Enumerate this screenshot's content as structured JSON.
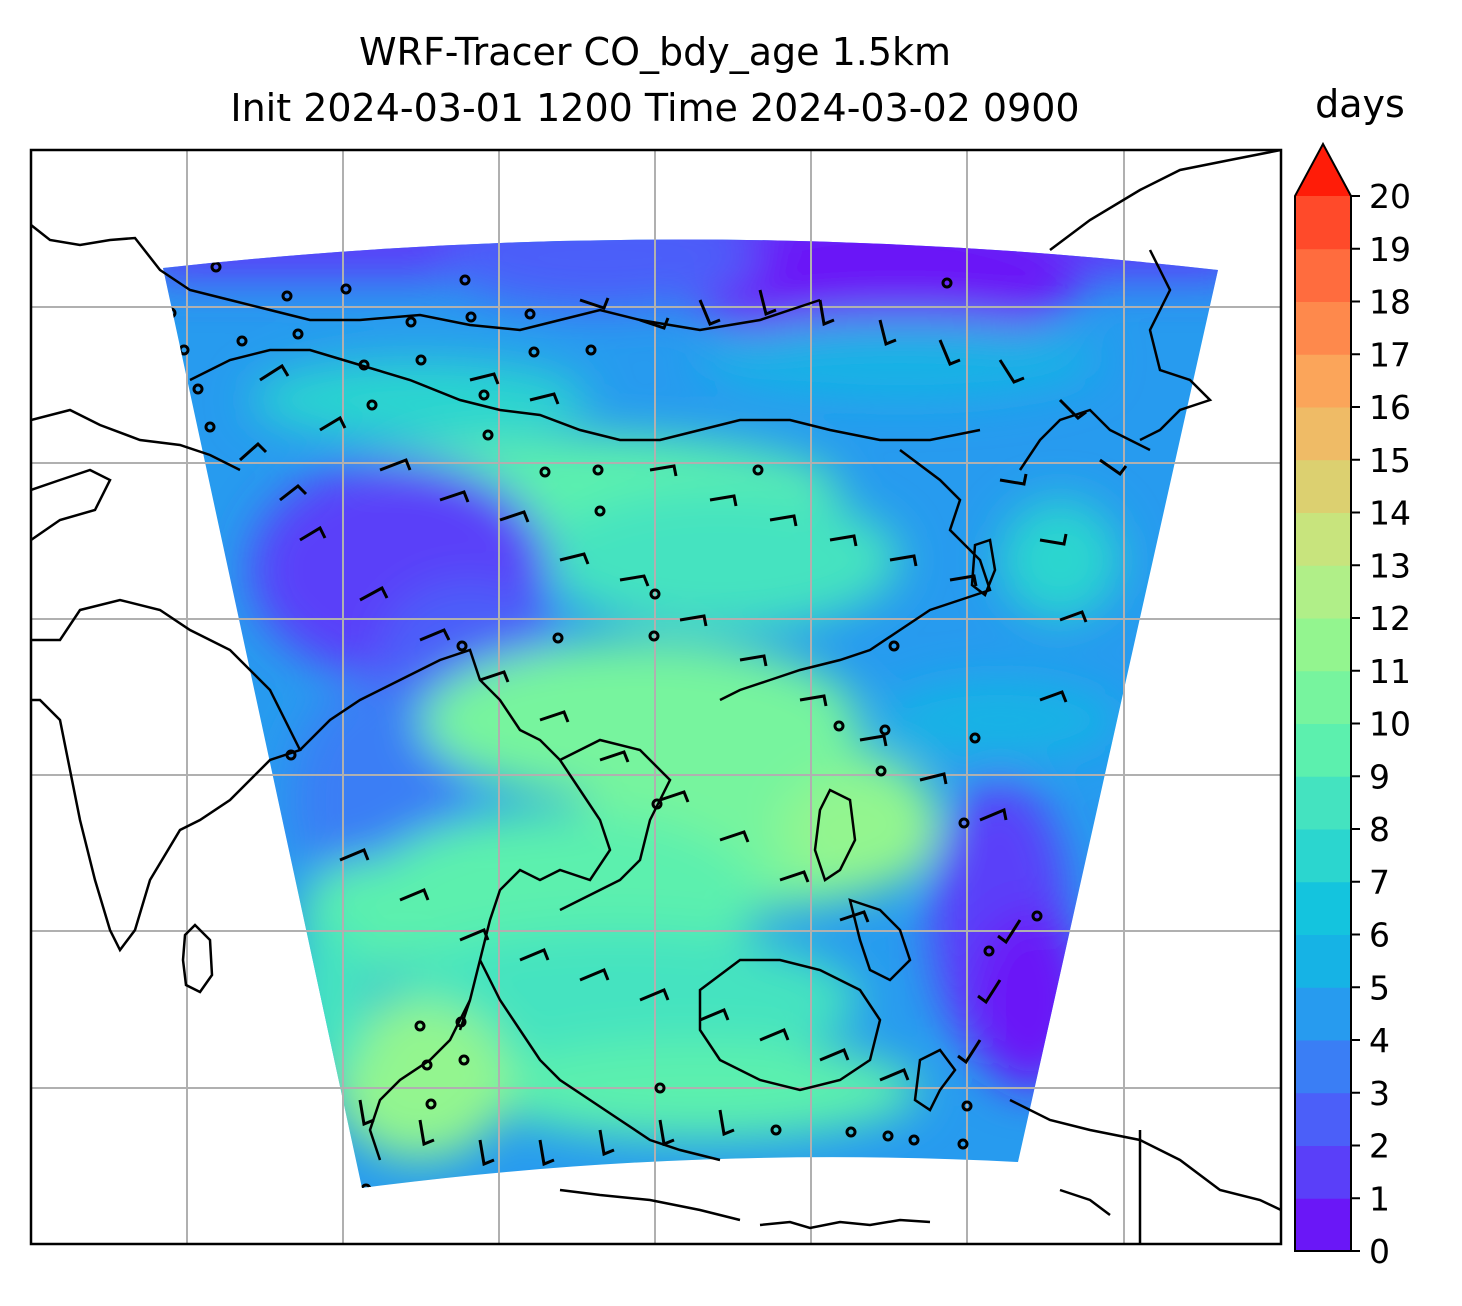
{
  "title": {
    "line1": "WRF-Tracer CO_bdy_age 1.5km",
    "line2": "Init 2024-03-01 1200 Time 2024-03-02 0900"
  },
  "colorbar": {
    "units": "days",
    "ticks": [
      "0",
      "1",
      "2",
      "3",
      "4",
      "5",
      "6",
      "7",
      "8",
      "9",
      "10",
      "11",
      "12",
      "13",
      "14",
      "15",
      "16",
      "17",
      "18",
      "19",
      "20"
    ],
    "colors": [
      "#6a17f7",
      "#5a3ff9",
      "#4b5ff9",
      "#3a7ef5",
      "#279bef",
      "#16b3e5",
      "#14c4de",
      "#2bd6cf",
      "#44e3c0",
      "#5cf0ae",
      "#77f49e",
      "#93f58f",
      "#b0ef88",
      "#c8e47d",
      "#dcd070",
      "#efbb66",
      "#fba55a",
      "#fe894c",
      "#ff6c3e",
      "#ff4a2a"
    ],
    "extend_color": "#ff1c08"
  },
  "map": {
    "fill_description_colors": {
      "low": "#6a17f7",
      "mid": "#279bef",
      "high": "#77f49e"
    },
    "gridline_color": "#b0b0b0",
    "coastline_color": "#000000"
  }
}
